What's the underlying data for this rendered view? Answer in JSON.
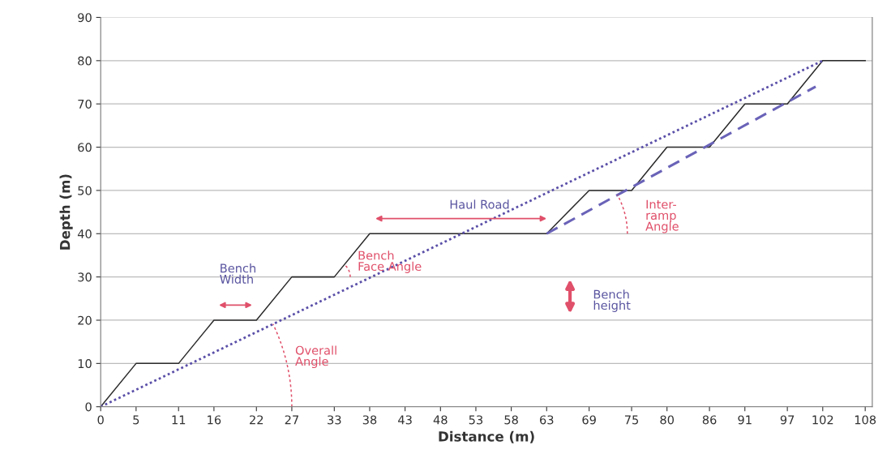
{
  "chart_data": {
    "type": "line",
    "xlabel": "Distance (m)",
    "ylabel": "Depth (m)",
    "xlim": [
      0,
      109
    ],
    "ylim": [
      0,
      90
    ],
    "xticks": [
      0,
      5,
      11,
      16,
      22,
      27,
      33,
      38,
      43,
      48,
      53,
      58,
      63,
      69,
      75,
      80,
      86,
      91,
      97,
      102,
      108
    ],
    "yticks": [
      0,
      10,
      20,
      30,
      40,
      50,
      60,
      70,
      80,
      90
    ],
    "grid": "y",
    "legend": false,
    "marker": "none",
    "series": [
      {
        "color": "#2b2b2b",
        "line_style": "solid",
        "x": [
          0,
          5,
          11,
          16,
          22,
          27,
          33,
          38,
          63,
          69,
          75,
          80,
          86,
          91,
          97,
          102,
          108
        ],
        "values": [
          0,
          10,
          10,
          20,
          20,
          30,
          30,
          40,
          40,
          50,
          50,
          60,
          60,
          70,
          70,
          80,
          80
        ]
      },
      {
        "color": "#5a4fa8",
        "line_style": "dotted",
        "x": [
          0,
          102
        ],
        "values": [
          0,
          80
        ]
      },
      {
        "color": "#6a63b8",
        "line_style": "dashed",
        "x": [
          63,
          101
        ],
        "values": [
          40,
          74
        ]
      }
    ],
    "annotations": [
      "Bench\nWidth",
      "Bench\nFace Angle",
      "Haul Road",
      "Inter-\nramp\nAngle",
      "Bench\nheight",
      "Overall\nAngle"
    ]
  }
}
